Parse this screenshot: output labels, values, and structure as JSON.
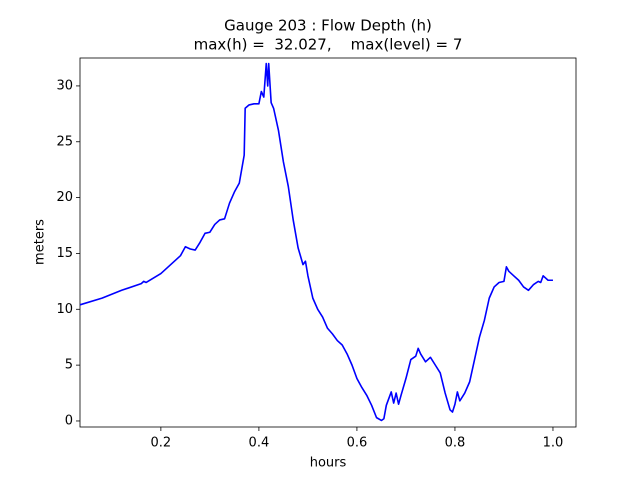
{
  "chart_data": {
    "type": "line",
    "title": [
      "Gauge 203 : Flow Depth (h)",
      "max(h) =  32.027,    max(level) = 7"
    ],
    "xlabel": "hours",
    "ylabel": "meters",
    "color": "#0000ff",
    "x": [
      0.035,
      0.08,
      0.12,
      0.16,
      0.165,
      0.17,
      0.2,
      0.24,
      0.25,
      0.26,
      0.27,
      0.28,
      0.29,
      0.3,
      0.31,
      0.32,
      0.33,
      0.34,
      0.35,
      0.36,
      0.37,
      0.372,
      0.38,
      0.39,
      0.4,
      0.405,
      0.41,
      0.415,
      0.418,
      0.42,
      0.425,
      0.43,
      0.44,
      0.45,
      0.46,
      0.47,
      0.48,
      0.49,
      0.495,
      0.5,
      0.51,
      0.52,
      0.53,
      0.54,
      0.55,
      0.56,
      0.57,
      0.58,
      0.59,
      0.6,
      0.61,
      0.62,
      0.63,
      0.64,
      0.65,
      0.655,
      0.66,
      0.67,
      0.675,
      0.68,
      0.685,
      0.69,
      0.7,
      0.71,
      0.72,
      0.725,
      0.73,
      0.74,
      0.75,
      0.76,
      0.77,
      0.78,
      0.79,
      0.795,
      0.8,
      0.805,
      0.81,
      0.82,
      0.83,
      0.84,
      0.85,
      0.86,
      0.87,
      0.88,
      0.89,
      0.9,
      0.905,
      0.91,
      0.92,
      0.93,
      0.94,
      0.95,
      0.96,
      0.97,
      0.975,
      0.98,
      0.99,
      1.0
    ],
    "y": [
      10.4,
      11.0,
      11.7,
      12.3,
      12.5,
      12.4,
      13.2,
      14.8,
      15.6,
      15.4,
      15.3,
      16.0,
      16.8,
      16.9,
      17.6,
      18.0,
      18.1,
      19.5,
      20.5,
      21.3,
      23.8,
      28.0,
      28.3,
      28.4,
      28.4,
      29.5,
      29.0,
      32.0,
      30.0,
      32.0,
      28.5,
      28.0,
      26.0,
      23.2,
      21.0,
      18.0,
      15.5,
      14.0,
      14.3,
      13.0,
      11.0,
      10.0,
      9.3,
      8.3,
      7.8,
      7.2,
      6.8,
      6.0,
      5.0,
      3.8,
      3.0,
      2.3,
      1.4,
      0.3,
      0.05,
      0.2,
      1.4,
      2.6,
      1.6,
      2.5,
      1.5,
      2.3,
      3.8,
      5.5,
      5.8,
      6.5,
      6.0,
      5.3,
      5.7,
      5.0,
      4.3,
      2.5,
      1.0,
      0.8,
      1.5,
      2.6,
      1.8,
      2.5,
      3.5,
      5.5,
      7.5,
      9.0,
      11.0,
      12.0,
      12.4,
      12.5,
      13.8,
      13.4,
      13.0,
      12.6,
      12.0,
      11.7,
      12.2,
      12.5,
      12.4,
      13.0,
      12.6,
      12.6
    ],
    "xlim": [
      0.035,
      1.047
    ],
    "ylim": [
      -0.54,
      32.5
    ],
    "xticks": [
      0.2,
      0.4,
      0.6,
      0.8,
      {
        "value": 1,
        "label": "1.0"
      }
    ],
    "yticks": [
      0,
      5,
      10,
      15,
      20,
      25,
      30
    ]
  }
}
